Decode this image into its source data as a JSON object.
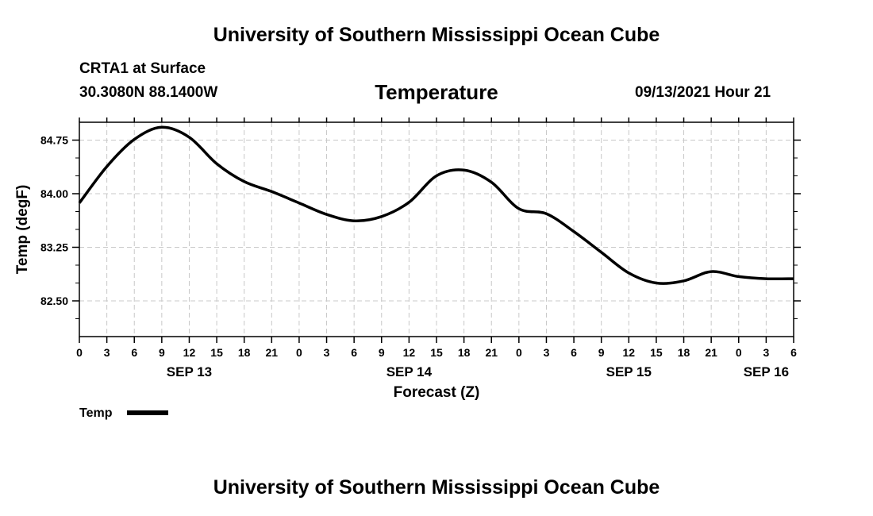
{
  "header": {
    "title_top": "University of Southern Mississippi Ocean Cube",
    "station": "CRTA1 at Surface",
    "coords": "30.3080N  88.1400W",
    "variable": "Temperature",
    "issued": "09/13/2021 Hour 21",
    "title_bottom": "University of Southern Mississippi Ocean Cube"
  },
  "chart_data": {
    "type": "line",
    "title": "Temperature",
    "xlabel": "Forecast (Z)",
    "ylabel": "Temp (degF)",
    "xlim": [
      0,
      78
    ],
    "ylim": [
      82.0,
      85.0
    ],
    "yticks": [
      82.5,
      83.25,
      84.0,
      84.75
    ],
    "ytick_labels": [
      "82.50",
      "83.25",
      "84.00",
      "84.75"
    ],
    "xtick_labels": [
      "0",
      "3",
      "6",
      "9",
      "12",
      "15",
      "18",
      "21",
      "0",
      "3",
      "6",
      "9",
      "12",
      "15",
      "18",
      "21",
      "0",
      "3",
      "6",
      "9",
      "12",
      "15",
      "18",
      "21",
      "0",
      "3",
      "6"
    ],
    "day_labels": [
      {
        "hour": 12,
        "label": "SEP 13"
      },
      {
        "hour": 36,
        "label": "SEP 14"
      },
      {
        "hour": 60,
        "label": "SEP 15"
      },
      {
        "hour": 75,
        "label": "SEP 16"
      }
    ],
    "grid": true,
    "legend": "bottom-left",
    "series": [
      {
        "name": "Temp",
        "color": "#000000",
        "x": [
          0,
          3,
          6,
          9,
          12,
          15,
          18,
          21,
          24,
          27,
          30,
          33,
          36,
          39,
          42,
          45,
          48,
          51,
          54,
          57,
          60,
          63,
          66,
          69,
          72,
          75,
          78
        ],
        "values": [
          83.87,
          84.38,
          84.76,
          84.93,
          84.79,
          84.42,
          84.17,
          84.03,
          83.87,
          83.71,
          83.62,
          83.68,
          83.88,
          84.25,
          84.33,
          84.16,
          83.79,
          83.72,
          83.47,
          83.18,
          82.89,
          82.75,
          82.78,
          82.91,
          82.84,
          82.81,
          82.81
        ]
      }
    ]
  }
}
